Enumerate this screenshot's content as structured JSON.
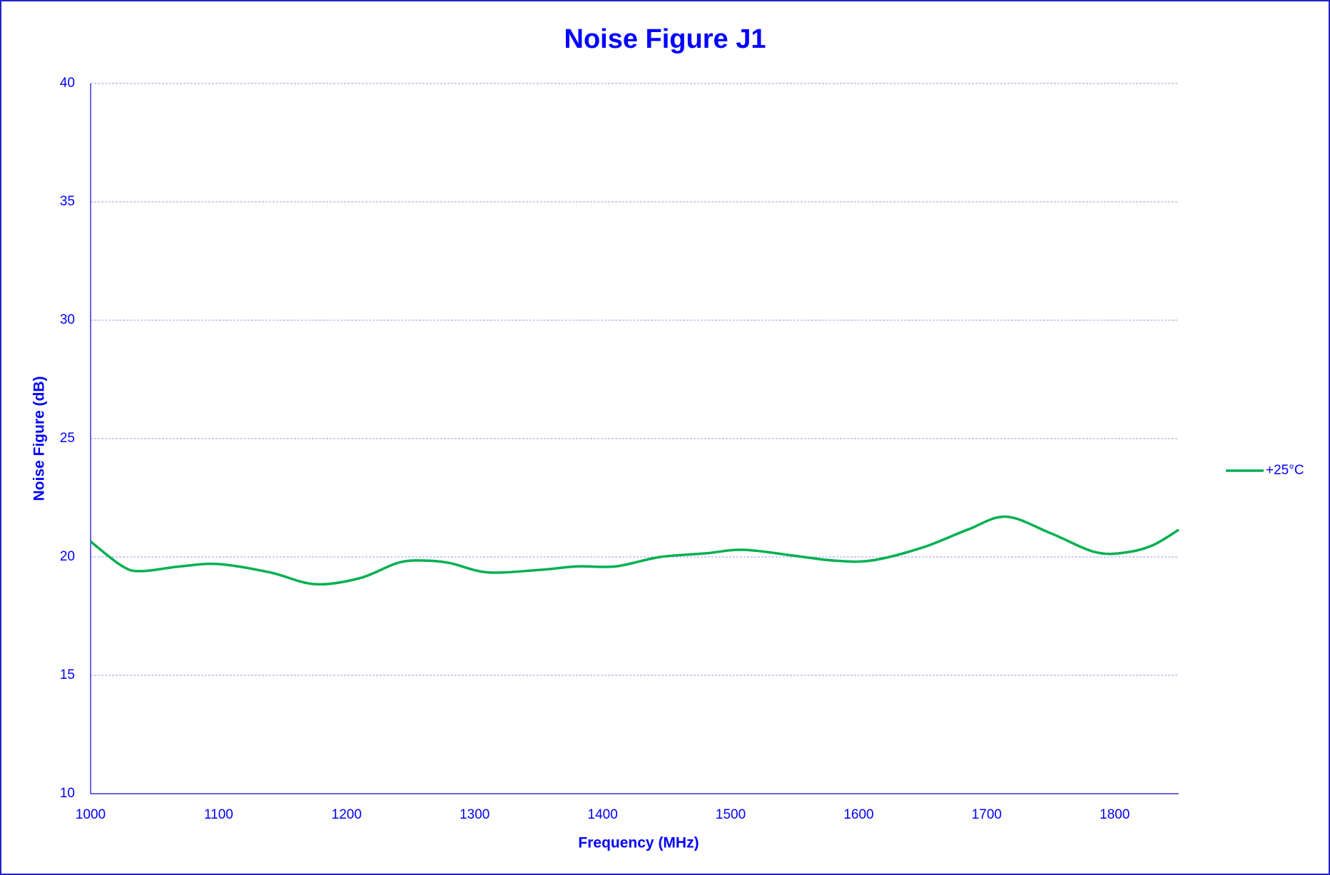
{
  "chart_data": {
    "type": "line",
    "title": "Noise Figure J1",
    "x_label": "Frequency (MHz)",
    "y_label": "Noise Figure (dB)",
    "x": [
      1000,
      1025,
      1040,
      1070,
      1100,
      1140,
      1175,
      1210,
      1240,
      1260,
      1280,
      1310,
      1350,
      1380,
      1410,
      1445,
      1480,
      1510,
      1550,
      1580,
      1610,
      1650,
      1685,
      1715,
      1750,
      1785,
      1810,
      1830,
      1850
    ],
    "series": [
      {
        "name": "+25°C",
        "color": "#00b050",
        "values": [
          20.65,
          19.6,
          19.4,
          19.6,
          19.7,
          19.35,
          18.85,
          19.1,
          19.75,
          19.85,
          19.75,
          19.35,
          19.45,
          19.6,
          19.6,
          20.0,
          20.15,
          20.3,
          20.05,
          19.85,
          19.85,
          20.4,
          21.15,
          21.7,
          21.0,
          20.2,
          20.2,
          20.5,
          21.15
        ]
      }
    ],
    "xlim": [
      1000,
      1850
    ],
    "xticks": [
      1000,
      1100,
      1200,
      1300,
      1400,
      1500,
      1600,
      1700,
      1800
    ],
    "ylim": [
      10,
      40
    ],
    "yticks": [
      10,
      15,
      20,
      25,
      30,
      35,
      40
    ],
    "grid": true,
    "legend": "right",
    "text_color": "#0000ff",
    "grid_color": "#9999ee"
  }
}
